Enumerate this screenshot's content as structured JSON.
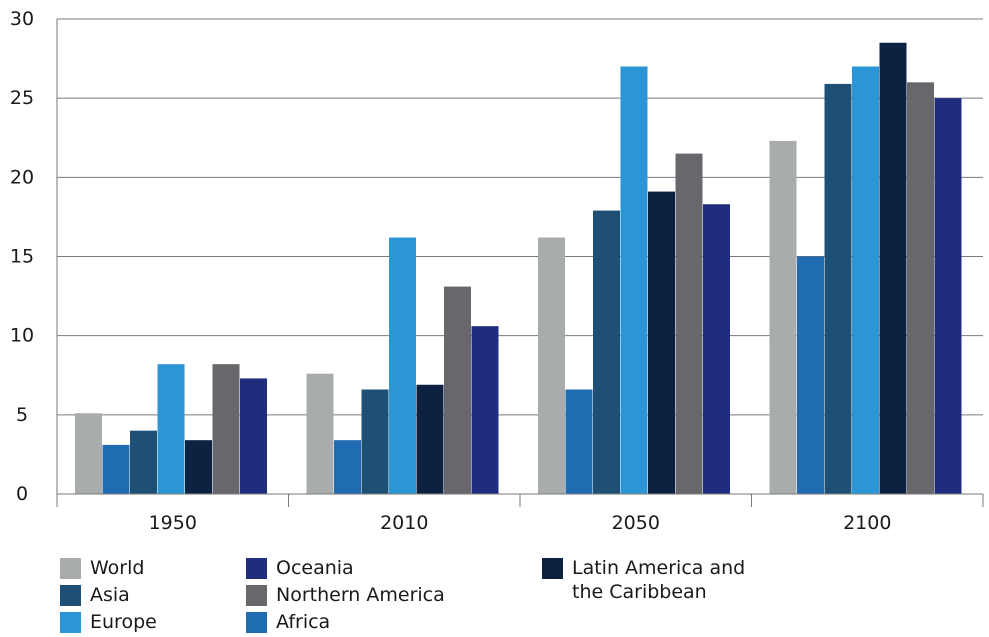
{
  "chart_data": {
    "type": "bar",
    "title": "",
    "xlabel": "",
    "ylabel": "",
    "ylim": [
      0,
      30
    ],
    "yticks": [
      0,
      5,
      10,
      15,
      20,
      25,
      30
    ],
    "grid": true,
    "legend_position": "bottom-left",
    "categories": [
      "1950",
      "2010",
      "2050",
      "2100"
    ],
    "series": [
      {
        "name": "World",
        "color": "#a8acad",
        "values": [
          5.1,
          7.6,
          16.2,
          22.3
        ]
      },
      {
        "name": "Africa",
        "color": "#1f6cb3",
        "values": [
          3.1,
          3.4,
          6.6,
          15.0
        ]
      },
      {
        "name": "Asia",
        "color": "#1e4f75",
        "values": [
          4.0,
          6.6,
          17.9,
          25.9
        ]
      },
      {
        "name": "Europe",
        "color": "#2b95d6",
        "values": [
          8.2,
          16.2,
          27.0,
          27.0
        ]
      },
      {
        "name": "Latin America and\nthe Caribbean",
        "color": "#0d2240",
        "values": [
          3.4,
          6.9,
          19.1,
          28.5
        ]
      },
      {
        "name": "Northern America",
        "color": "#68676c",
        "values": [
          8.2,
          13.1,
          21.5,
          26.0
        ]
      },
      {
        "name": "Oceania",
        "color": "#1f2d7c",
        "values": [
          7.3,
          10.6,
          18.3,
          25.0
        ]
      }
    ]
  },
  "legend": {
    "items": [
      {
        "key": "world",
        "label": "World",
        "color": "#a8acad"
      },
      {
        "key": "asia",
        "label": "Asia",
        "color": "#1e4f75"
      },
      {
        "key": "europe",
        "label": "Europe",
        "color": "#2b95d6"
      },
      {
        "key": "oceania",
        "label": "Oceania",
        "color": "#1f2d7c"
      },
      {
        "key": "northern-america",
        "label": "Northern America",
        "color": "#68676c"
      },
      {
        "key": "africa",
        "label": "Africa",
        "color": "#1f6cb3"
      },
      {
        "key": "latin-america",
        "label": "Latin America and\nthe Caribbean",
        "color": "#0d2240"
      }
    ]
  }
}
